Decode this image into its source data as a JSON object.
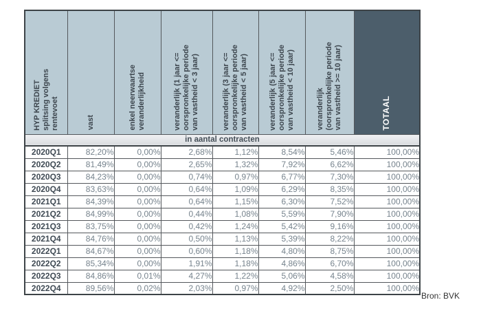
{
  "table": {
    "corner_label": "HYP KREDIET\nsplitsing volgens\nrentevoet",
    "columns": [
      {
        "label": "vast"
      },
      {
        "label": "enkel neerwaartse\nveranderlijkheid"
      },
      {
        "label": "veranderlijk (1 jaar <=\noorspronkelijke periode\nvan vastheid < 3 jaar)"
      },
      {
        "label": "veranderlijk (3 jaar <=\noorspronkelijke periode\nvan vastheid < 5 jaar)"
      },
      {
        "label": "veranderlijk (5 jaar <=\noorspronkelijke periode\nvan vastheid < 10 jaar)"
      },
      {
        "label": "veranderlijk\n(oorspronkelijke periode\nvan vastheid >= 10 jaar)"
      },
      {
        "label": "TOTAAL"
      }
    ],
    "unit_band": "in aantal contracten",
    "rows": [
      {
        "quarter": "2020Q1",
        "values": [
          "82,20%",
          "0,00%",
          "2,68%",
          "1,12%",
          "8,54%",
          "5,46%",
          "100,00%"
        ]
      },
      {
        "quarter": "2020Q2",
        "values": [
          "81,49%",
          "0,00%",
          "2,65%",
          "1,32%",
          "7,92%",
          "6,62%",
          "100,00%"
        ]
      },
      {
        "quarter": "2020Q3",
        "values": [
          "84,23%",
          "0,00%",
          "0,74%",
          "0,97%",
          "6,77%",
          "7,30%",
          "100,00%"
        ]
      },
      {
        "quarter": "2020Q4",
        "values": [
          "83,63%",
          "0,00%",
          "0,64%",
          "1,09%",
          "6,29%",
          "8,35%",
          "100,00%"
        ]
      },
      {
        "quarter": "2021Q1",
        "values": [
          "84,39%",
          "0,00%",
          "0,64%",
          "1,15%",
          "6,30%",
          "7,52%",
          "100,00%"
        ]
      },
      {
        "quarter": "2021Q2",
        "values": [
          "84,99%",
          "0,00%",
          "0,44%",
          "1,08%",
          "5,59%",
          "7,90%",
          "100,00%"
        ]
      },
      {
        "quarter": "2021Q3",
        "values": [
          "83,75%",
          "0,00%",
          "0,42%",
          "1,24%",
          "5,42%",
          "9,16%",
          "100,00%"
        ]
      },
      {
        "quarter": "2021Q4",
        "values": [
          "84,76%",
          "0,00%",
          "0,50%",
          "1,13%",
          "5,39%",
          "8,22%",
          "100,00%"
        ]
      },
      {
        "quarter": "2022Q1",
        "values": [
          "84,67%",
          "0,00%",
          "0,60%",
          "1,18%",
          "4,80%",
          "8,75%",
          "100,00%"
        ]
      },
      {
        "quarter": "2022Q2",
        "values": [
          "85,34%",
          "0,00%",
          "1,91%",
          "1,18%",
          "4,86%",
          "6,70%",
          "100,00%"
        ]
      },
      {
        "quarter": "2022Q3",
        "values": [
          "84,86%",
          "0,01%",
          "4,27%",
          "1,22%",
          "5,06%",
          "4,58%",
          "100,00%"
        ]
      },
      {
        "quarter": "2022Q4",
        "values": [
          "89,56%",
          "0,02%",
          "2,03%",
          "0,97%",
          "4,92%",
          "2,50%",
          "100,00%"
        ]
      }
    ]
  },
  "source_note": "Bron: BVK",
  "colors": {
    "header_bg": "#b9cbd4",
    "totaal_bg": "#4c5e6b",
    "totaal_text": "#ffffff",
    "band_bg": "#dfe2e5",
    "header_text": "#3d464e",
    "value_text": "#76838d",
    "row_label_text": "#3e4953",
    "border": "#53575b"
  }
}
